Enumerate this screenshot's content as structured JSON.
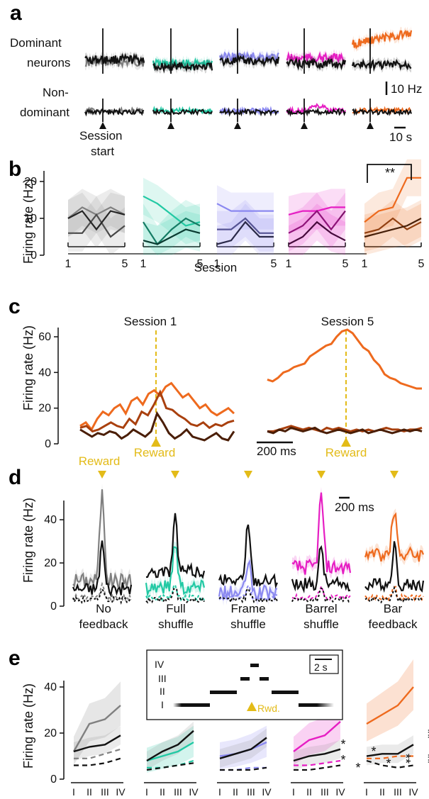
{
  "palette": {
    "gray": "#808080",
    "teal": "#22c9a4",
    "lavender": "#8b89f0",
    "magenta": "#e61ec3",
    "orange": "#ee6a1e",
    "gold": "#e3bb18",
    "black": "#111111"
  },
  "panel_a": {
    "label": "a",
    "row1_label": [
      "Dominant",
      "neurons"
    ],
    "row2_label": [
      "Non-",
      "dominant"
    ],
    "session_start": [
      "Session",
      "start"
    ],
    "scale_y": "10 Hz",
    "scale_x": "10 s"
  },
  "panel_b": {
    "label": "b",
    "ylabel": "Firing rate (Hz)",
    "xlabel": "Session",
    "sig": "**"
  },
  "panel_c": {
    "label": "c",
    "ylabel": "Firing rate (Hz)",
    "session1": "Session 1",
    "session5": "Session 5",
    "reward": "Reward",
    "scale": "200 ms"
  },
  "panel_d": {
    "label": "d",
    "ylabel": "Firing rate (Hz)",
    "reward": "Reward",
    "scale": "200 ms",
    "conditions": [
      [
        "No",
        "feedback"
      ],
      [
        "Full",
        "shuffle"
      ],
      [
        "Frame",
        "shuffle"
      ],
      [
        "Barrel",
        "shuffle"
      ],
      [
        "Bar",
        "feedback"
      ]
    ]
  },
  "panel_e": {
    "label": "e",
    "ylabel": "Firing rate (Hz)",
    "xticks": [
      "I",
      "II",
      "III",
      "IV"
    ],
    "inset_levels": [
      "IV",
      "III",
      "II",
      "I"
    ],
    "inset_scale": "2 s",
    "inset_reward": "Rwd.",
    "stars": [
      "*",
      "*",
      "*",
      "*",
      "*",
      "**",
      "**",
      "**"
    ]
  },
  "chart_data": [
    {
      "type": "line",
      "title": "b",
      "ylabel": "Firing rate (Hz)",
      "xlabel": "Session",
      "ylim": [
        0,
        22
      ],
      "x": [
        1,
        2,
        3,
        4,
        5
      ],
      "groups": [
        {
          "color": "gray",
          "series": [
            [
              10,
              13,
              11,
              13,
              11
            ],
            [
              6,
              6,
              11,
              5,
              8
            ],
            [
              10,
              12,
              7,
              12,
              11
            ]
          ]
        },
        {
          "color": "teal",
          "series": [
            [
              16,
              14,
              11,
              8,
              9
            ],
            [
              9,
              3,
              7,
              10,
              8
            ],
            [
              4,
              3,
              5,
              7,
              6
            ]
          ]
        },
        {
          "color": "lavender",
          "series": [
            [
              14,
              12,
              12,
              12,
              12
            ],
            [
              7,
              7,
              10,
              6,
              6
            ],
            [
              3,
              4,
              9,
              5,
              5
            ]
          ]
        },
        {
          "color": "magenta",
          "series": [
            [
              11,
              12,
              12,
              13,
              13
            ],
            [
              6,
              8,
              12,
              7,
              12
            ],
            [
              3,
              5,
              9,
              6,
              4
            ]
          ]
        },
        {
          "color": "orange",
          "series": [
            [
              9,
              12,
              13,
              21,
              21
            ],
            [
              6,
              7,
              10,
              7,
              9
            ],
            [
              5,
              6,
              7,
              8,
              10
            ]
          ]
        }
      ]
    },
    {
      "type": "line",
      "title": "c",
      "ylabel": "Firing rate (Hz)",
      "ylim": [
        0,
        68
      ],
      "session1_series": [
        [
          10,
          12,
          8,
          14,
          18,
          16,
          20,
          22,
          17,
          24,
          26,
          22,
          28,
          30,
          27,
          32,
          34,
          30,
          26,
          28,
          24,
          20,
          22,
          18,
          16,
          18,
          20,
          17
        ],
        [
          9,
          10,
          7,
          8,
          10,
          12,
          10,
          9,
          14,
          11,
          18,
          16,
          22,
          29,
          20,
          19,
          16,
          14,
          11,
          10,
          12,
          9,
          11,
          10,
          12,
          13
        ],
        [
          8,
          6,
          4,
          6,
          5,
          7,
          6,
          3,
          5,
          8,
          6,
          4,
          7,
          17,
          12,
          6,
          3,
          5,
          8,
          4,
          3,
          2,
          4,
          6,
          3,
          2,
          7
        ]
      ],
      "session5_series": [
        [
          36,
          35,
          37,
          40,
          41,
          43,
          44,
          45,
          49,
          51,
          53,
          55,
          56,
          60,
          63,
          64,
          62,
          58,
          54,
          52,
          47,
          44,
          39,
          37,
          36,
          34,
          33,
          32,
          31,
          31
        ],
        [
          7,
          7,
          8,
          9,
          10,
          9,
          8,
          9,
          8,
          7,
          9,
          8,
          9,
          8,
          7,
          8,
          7,
          8,
          7,
          8,
          9,
          8,
          8,
          7,
          8,
          8,
          9
        ],
        [
          7,
          6,
          8,
          7,
          9,
          8,
          7,
          8,
          9,
          7,
          6,
          7,
          8,
          7,
          6,
          7,
          8,
          6,
          7,
          8,
          7,
          6,
          7,
          8,
          7,
          8,
          7
        ]
      ]
    },
    {
      "type": "line",
      "title": "d",
      "ylabel": "Firing rate (Hz)",
      "ylim": [
        0,
        52
      ],
      "conditions": [
        {
          "name": "No feedback",
          "color": "gray",
          "peak_color": 52,
          "peak_black": 30,
          "base_color": 12,
          "base_black": 8
        },
        {
          "name": "Full shuffle",
          "color": "teal",
          "peak_color": 30,
          "peak_black": 41,
          "base_color": 9,
          "base_black": 16
        },
        {
          "name": "Frame shuffle",
          "color": "lavender",
          "peak_color": 20,
          "peak_black": 40,
          "base_color": 6,
          "base_black": 12
        },
        {
          "name": "Barrel shuffle",
          "color": "magenta",
          "peak_color": 51,
          "peak_black": 28,
          "base_color": 18,
          "base_black": 10
        },
        {
          "name": "Bar feedback",
          "color": "orange",
          "peak_color": 45,
          "peak_black": 29,
          "base_color": 24,
          "base_black": 10
        }
      ]
    },
    {
      "type": "line",
      "title": "e",
      "ylabel": "Firing rate (Hz)",
      "ylim": [
        0,
        45
      ],
      "categories": [
        "I",
        "II",
        "III",
        "IV"
      ],
      "groups": [
        {
          "color": "gray",
          "colored": [
            12,
            24,
            26,
            32
          ],
          "black": [
            12,
            14,
            15,
            19
          ],
          "colored_dash": [
            9,
            9,
            11,
            13
          ],
          "black_dash": [
            6,
            6,
            7,
            9
          ]
        },
        {
          "color": "teal",
          "colored": [
            8,
            10,
            12,
            16
          ],
          "black": [
            8,
            12,
            15,
            21
          ],
          "colored_dash": [
            5,
            5,
            6,
            8
          ],
          "black_dash": [
            4,
            5,
            6,
            7
          ]
        },
        {
          "color": "lavender",
          "colored": [
            10,
            11,
            13,
            16
          ],
          "black": [
            9,
            11,
            13,
            18
          ],
          "colored_dash": [
            4,
            4,
            5,
            5
          ],
          "black_dash": [
            4,
            4,
            4,
            5
          ]
        },
        {
          "color": "magenta",
          "colored": [
            12,
            17,
            19,
            25
          ],
          "black": [
            8,
            10,
            11,
            13
          ],
          "colored_dash": [
            6,
            6,
            7,
            8
          ],
          "black_dash": [
            4,
            4,
            5,
            6
          ]
        },
        {
          "color": "orange",
          "colored": [
            24,
            28,
            32,
            40
          ],
          "black": [
            10,
            11,
            11,
            15
          ],
          "colored_dash": [
            9,
            9,
            10,
            10
          ],
          "black_dash": [
            8,
            6,
            5,
            6
          ]
        }
      ]
    }
  ]
}
